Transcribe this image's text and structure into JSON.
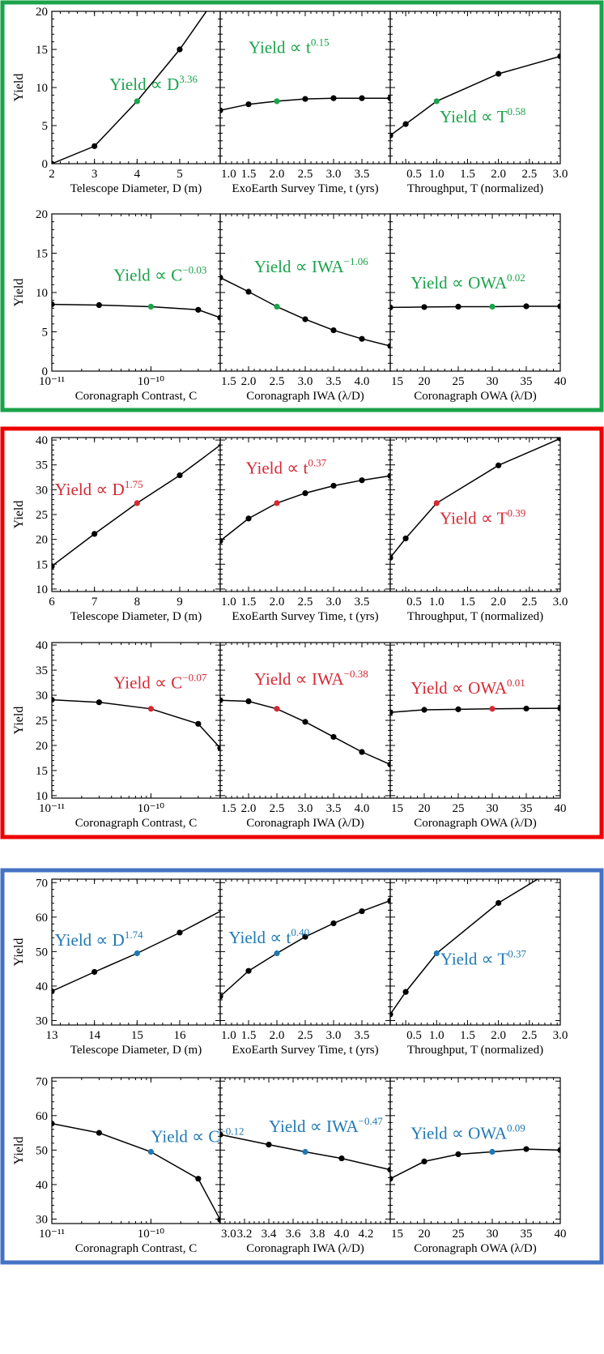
{
  "chart_data": [
    {
      "type": "line",
      "frame_color": "#1aa34a",
      "highlight_color": "#1aa34a",
      "ylabel": "Yield",
      "ylim": [
        0,
        20
      ],
      "yticks": [
        0,
        5,
        10,
        15,
        20
      ],
      "panels": [
        {
          "xlabel": "Telescope Diameter, D (m)",
          "xscale": "linear",
          "xlim": [
            2,
            5.95
          ],
          "xticks": [
            2,
            3,
            4,
            5
          ],
          "xtick_labels": [
            "2",
            "3",
            "4",
            "5"
          ],
          "x": [
            2,
            3,
            4,
            5,
            6
          ],
          "y": [
            0.0,
            2.3,
            8.2,
            15.0,
            23.0
          ],
          "highlight_index": 2,
          "annotation": {
            "base": "Yield ∝ D",
            "exp": "3.36",
            "anchor": [
              3.35,
              9.7
            ]
          }
        },
        {
          "xlabel": "ExoEarth Survey Time, t (yrs)",
          "xscale": "linear",
          "xlim": [
            1.0,
            4.0
          ],
          "xticks": [
            1.0,
            1.5,
            2.0,
            2.5,
            3.0,
            3.5
          ],
          "xtick_labels": [
            "1.0",
            "1.5",
            "2.0",
            "2.5",
            "3.0",
            "3.5"
          ],
          "x": [
            1.0,
            1.5,
            2.0,
            2.5,
            3.0,
            3.5,
            4.0
          ],
          "y": [
            7.0,
            7.8,
            8.2,
            8.5,
            8.6,
            8.6,
            8.6
          ],
          "highlight_index": 2,
          "annotation": {
            "base": "Yield ∝ t",
            "exp": "0.15",
            "anchor": [
              1.5,
              14.5
            ]
          }
        },
        {
          "xlabel": "Throughput, T (normalized)",
          "xscale": "linear",
          "xlim": [
            0.25,
            3.0
          ],
          "xticks": [
            0.5,
            1.0,
            1.5,
            2.0,
            2.5,
            3.0
          ],
          "xtick_labels": [
            "0.5",
            "1.0",
            "1.5",
            "2.0",
            "2.5",
            "3.0"
          ],
          "x": [
            0.25,
            0.5,
            1.0,
            2.0,
            3.0
          ],
          "y": [
            3.7,
            5.2,
            8.2,
            11.8,
            14.1
          ],
          "highlight_index": 2,
          "annotation": {
            "base": "Yield ∝ T",
            "exp": "0.58",
            "anchor": [
              1.05,
              5.4
            ]
          }
        }
      ]
    },
    {
      "type": "line",
      "frame_color": "#1aa34a",
      "highlight_color": "#1aa34a",
      "ylabel": "Yield",
      "ylim": [
        0,
        20
      ],
      "yticks": [
        0,
        5,
        10,
        15,
        20
      ],
      "panels": [
        {
          "xlabel": "Coronagraph Contrast, C",
          "xscale": "log",
          "xlim": [
            1e-11,
            5e-10
          ],
          "xticks": [
            1e-11,
            1e-10
          ],
          "xtick_labels": [
            "10⁻¹¹",
            "10⁻¹⁰"
          ],
          "x": [
            1e-11,
            3e-11,
            1e-10,
            3e-10,
            5e-10
          ],
          "y": [
            8.5,
            8.4,
            8.2,
            7.8,
            6.8
          ],
          "highlight_index": 2,
          "annotation": {
            "base": "Yield ∝ C",
            "exp": "−0.03",
            "anchor": [
              4.2e-11,
              11.5
            ]
          }
        },
        {
          "xlabel": "Coronagraph IWA (λ/D)",
          "xscale": "linear",
          "xlim": [
            1.5,
            4.5
          ],
          "xticks": [
            1.5,
            2.0,
            2.5,
            3.0,
            3.5,
            4.0
          ],
          "xtick_labels": [
            "1.5",
            "2.0",
            "2.5",
            "3.0",
            "3.5",
            "4.0"
          ],
          "x": [
            1.5,
            2.0,
            2.5,
            3.0,
            3.5,
            4.0,
            4.5
          ],
          "y": [
            11.9,
            10.1,
            8.2,
            6.6,
            5.2,
            4.1,
            3.2
          ],
          "highlight_index": 2,
          "annotation": {
            "base": "Yield ∝ IWA",
            "exp": "−1.06",
            "anchor": [
              2.1,
              12.6
            ]
          }
        },
        {
          "xlabel": "Coronagraph OWA (λ/D)",
          "xscale": "linear",
          "xlim": [
            15,
            40
          ],
          "xticks": [
            15,
            20,
            25,
            30,
            35,
            40
          ],
          "xtick_labels": [
            "15",
            "20",
            "25",
            "30",
            "35",
            "40"
          ],
          "x": [
            15,
            20,
            25,
            30,
            35,
            40
          ],
          "y": [
            8.1,
            8.15,
            8.2,
            8.2,
            8.25,
            8.25
          ],
          "highlight_index": 3,
          "annotation": {
            "base": "Yield ∝ OWA",
            "exp": "0.02",
            "anchor": [
              18.0,
              10.5
            ]
          }
        }
      ]
    },
    {
      "type": "line",
      "frame_color": "#ee0000",
      "highlight_color": "#d42a35",
      "ylabel": "Yield",
      "ylim": [
        9.5,
        40.5
      ],
      "yticks": [
        10,
        15,
        20,
        25,
        30,
        35,
        40
      ],
      "panels": [
        {
          "xlabel": "Telescope Diameter, D (m)",
          "xscale": "linear",
          "xlim": [
            6,
            9.95
          ],
          "xticks": [
            6,
            7,
            8,
            9
          ],
          "xtick_labels": [
            "6",
            "7",
            "8",
            "9"
          ],
          "x": [
            6,
            7,
            8,
            9,
            10
          ],
          "y": [
            14.6,
            21.1,
            27.3,
            32.9,
            39.3
          ],
          "highlight_index": 2,
          "annotation": {
            "base": "Yield ∝ D",
            "exp": "1.75",
            "anchor": [
              6.07,
              28.9
            ]
          }
        },
        {
          "xlabel": "ExoEarth Survey Time, t (yrs)",
          "xscale": "linear",
          "xlim": [
            1.0,
            4.0
          ],
          "xticks": [
            1.0,
            1.5,
            2.0,
            2.5,
            3.0,
            3.5
          ],
          "xtick_labels": [
            "1.0",
            "1.5",
            "2.0",
            "2.5",
            "3.0",
            "3.5"
          ],
          "x": [
            1.0,
            1.5,
            2.0,
            2.5,
            3.0,
            3.5,
            4.0
          ],
          "y": [
            19.7,
            24.2,
            27.3,
            29.3,
            30.8,
            31.9,
            32.8
          ],
          "highlight_index": 2,
          "annotation": {
            "base": "Yield ∝ t",
            "exp": "0.37",
            "anchor": [
              1.45,
              33.2
            ]
          }
        },
        {
          "xlabel": "Throughput, T (normalized)",
          "xscale": "linear",
          "xlim": [
            0.25,
            3.0
          ],
          "xticks": [
            0.5,
            1.0,
            1.5,
            2.0,
            2.5,
            3.0
          ],
          "xtick_labels": [
            "0.5",
            "1.0",
            "1.5",
            "2.0",
            "2.5",
            "3.0"
          ],
          "x": [
            0.25,
            0.5,
            1.0,
            2.0,
            3.0
          ],
          "y": [
            16.3,
            20.2,
            27.3,
            34.9,
            40.3
          ],
          "highlight_index": 2,
          "annotation": {
            "base": "Yield ∝ T",
            "exp": "0.39",
            "anchor": [
              1.05,
              23.1
            ]
          }
        }
      ]
    },
    {
      "type": "line",
      "frame_color": "#ee0000",
      "highlight_color": "#d42a35",
      "ylabel": "Yield",
      "ylim": [
        9.5,
        40.5
      ],
      "yticks": [
        10,
        15,
        20,
        25,
        30,
        35,
        40
      ],
      "panels": [
        {
          "xlabel": "Coronagraph Contrast, C",
          "xscale": "log",
          "xlim": [
            1e-11,
            5e-10
          ],
          "xticks": [
            1e-11,
            1e-10
          ],
          "xtick_labels": [
            "10⁻¹¹",
            "10⁻¹⁰"
          ],
          "x": [
            1e-11,
            3e-11,
            1e-10,
            3e-10,
            5e-10
          ],
          "y": [
            29.1,
            28.6,
            27.3,
            24.3,
            19.5
          ],
          "highlight_index": 2,
          "annotation": {
            "base": "Yield ∝ C",
            "exp": "−0.07",
            "anchor": [
              4.2e-11,
              31.4
            ]
          }
        },
        {
          "xlabel": "Coronagraph IWA (λ/D)",
          "xscale": "linear",
          "xlim": [
            1.5,
            4.5
          ],
          "xticks": [
            1.5,
            2.0,
            2.5,
            3.0,
            3.5,
            4.0
          ],
          "xtick_labels": [
            "1.5",
            "2.0",
            "2.5",
            "3.0",
            "3.5",
            "4.0"
          ],
          "x": [
            1.5,
            2.0,
            2.5,
            3.0,
            3.5,
            4.0,
            4.5
          ],
          "y": [
            29.0,
            28.8,
            27.3,
            24.7,
            21.7,
            18.7,
            16.2
          ],
          "highlight_index": 2,
          "annotation": {
            "base": "Yield ∝ IWA",
            "exp": "−0.38",
            "anchor": [
              2.1,
              32.1
            ]
          }
        },
        {
          "xlabel": "Coronagraph OWA (λ/D)",
          "xscale": "linear",
          "xlim": [
            15,
            40
          ],
          "xticks": [
            15,
            20,
            25,
            30,
            35,
            40
          ],
          "xtick_labels": [
            "15",
            "20",
            "25",
            "30",
            "35",
            "40"
          ],
          "x": [
            15,
            20,
            25,
            30,
            35,
            40
          ],
          "y": [
            26.6,
            27.1,
            27.2,
            27.3,
            27.35,
            27.4
          ],
          "highlight_index": 3,
          "annotation": {
            "base": "Yield ∝ OWA",
            "exp": "0.01",
            "anchor": [
              18.0,
              30.3
            ]
          }
        }
      ]
    },
    {
      "type": "line",
      "frame_color": "#4472c4",
      "highlight_color": "#1f78b4",
      "ylabel": "Yield",
      "ylim": [
        28.7,
        71
      ],
      "yticks": [
        30,
        40,
        50,
        60,
        70
      ],
      "panels": [
        {
          "xlabel": "Telescope Diameter, D (m)",
          "xscale": "linear",
          "xlim": [
            13,
            16.95
          ],
          "xticks": [
            13,
            14,
            15,
            16
          ],
          "xtick_labels": [
            "13",
            "14",
            "15",
            "16"
          ],
          "x": [
            13,
            14,
            15,
            16,
            17
          ],
          "y": [
            38.5,
            44.1,
            49.5,
            55.5,
            62.0
          ],
          "highlight_index": 2,
          "annotation": {
            "base": "Yield ∝ D",
            "exp": "1.74",
            "anchor": [
              13.07,
              51.7
            ]
          }
        },
        {
          "xlabel": "ExoEarth Survey Time, t (yrs)",
          "xscale": "linear",
          "xlim": [
            1.0,
            4.0
          ],
          "xticks": [
            1.0,
            1.5,
            2.0,
            2.5,
            3.0,
            3.5
          ],
          "xtick_labels": [
            "1.0",
            "1.5",
            "2.0",
            "2.5",
            "3.0",
            "3.5"
          ],
          "x": [
            1.0,
            1.5,
            2.0,
            2.5,
            3.0,
            3.5,
            4.0
          ],
          "y": [
            37.0,
            44.4,
            49.5,
            54.3,
            58.2,
            61.7,
            64.8
          ],
          "highlight_index": 2,
          "annotation": {
            "base": "Yield ∝ t",
            "exp": "0.40",
            "anchor": [
              1.15,
              52.4
            ]
          }
        },
        {
          "xlabel": "Throughput, T (normalized)",
          "xscale": "linear",
          "xlim": [
            0.25,
            3.0
          ],
          "xticks": [
            0.5,
            1.0,
            1.5,
            2.0,
            2.5,
            3.0
          ],
          "xtick_labels": [
            "0.5",
            "1.0",
            "1.5",
            "2.0",
            "2.5",
            "3.0"
          ],
          "x": [
            0.25,
            0.5,
            1.0,
            2.0,
            3.0
          ],
          "y": [
            31.8,
            38.3,
            49.5,
            64.1,
            75.0
          ],
          "highlight_index": 2,
          "annotation": {
            "base": "Yield ∝ T",
            "exp": "0.37",
            "anchor": [
              1.06,
              46.2
            ]
          }
        }
      ]
    },
    {
      "type": "line",
      "frame_color": "#4472c4",
      "highlight_color": "#1f78b4",
      "ylabel": "Yield",
      "ylim": [
        28.7,
        71
      ],
      "yticks": [
        30,
        40,
        50,
        60,
        70
      ],
      "panels": [
        {
          "xlabel": "Coronagraph Contrast, C",
          "xscale": "log",
          "xlim": [
            1e-11,
            5e-10
          ],
          "xticks": [
            1e-11,
            1e-10
          ],
          "xtick_labels": [
            "10⁻¹¹",
            "10⁻¹⁰"
          ],
          "x": [
            1e-11,
            3e-11,
            1e-10,
            3e-10,
            5e-10
          ],
          "y": [
            57.7,
            55.0,
            49.5,
            41.7,
            29.8
          ],
          "highlight_index": 2,
          "annotation": {
            "base": "Yield ∝ C",
            "exp": "−0.12",
            "anchor": [
              1e-10,
              52.3
            ]
          }
        },
        {
          "xlabel": "Coronagraph IWA (λ/D)",
          "xscale": "linear",
          "xlim": [
            3.0,
            4.4
          ],
          "xticks": [
            3.0,
            3.2,
            3.4,
            3.6,
            3.8,
            4.0,
            4.2
          ],
          "xtick_labels": [
            "3.0",
            "3.2",
            "3.4",
            "3.6",
            "3.8",
            "4.0",
            "4.2"
          ],
          "x": [
            3.0,
            3.4,
            3.7,
            4.0,
            4.4
          ],
          "y": [
            54.5,
            51.6,
            49.5,
            47.6,
            44.3
          ],
          "highlight_index": 2,
          "annotation": {
            "base": "Yield ∝ IWA",
            "exp": "−0.47",
            "anchor": [
              3.4,
              55.2
            ]
          }
        },
        {
          "xlabel": "Coronagraph OWA (λ/D)",
          "xscale": "linear",
          "xlim": [
            15,
            40
          ],
          "xticks": [
            15,
            20,
            25,
            30,
            35,
            40
          ],
          "xtick_labels": [
            "15",
            "20",
            "25",
            "30",
            "35",
            "40"
          ],
          "x": [
            15,
            20,
            25,
            30,
            35,
            40
          ],
          "y": [
            41.7,
            46.7,
            48.8,
            49.5,
            50.3,
            50.0
          ],
          "highlight_index": 3,
          "annotation": {
            "base": "Yield ∝ OWA",
            "exp": "0.09",
            "anchor": [
              18.0,
              53.3
            ]
          }
        }
      ]
    }
  ]
}
